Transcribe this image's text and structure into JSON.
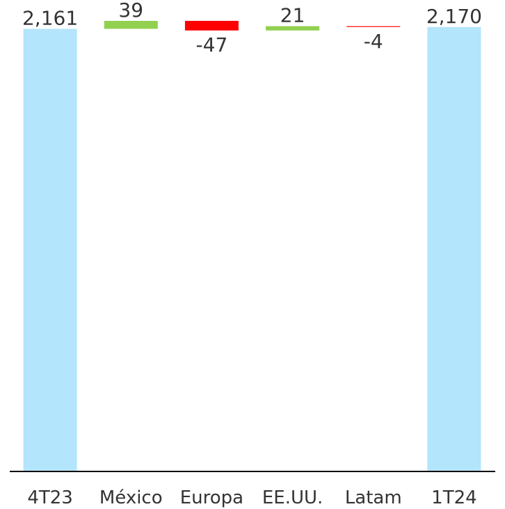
{
  "chart_data": {
    "type": "waterfall",
    "categories": [
      "4T23",
      "México",
      "Europa",
      "EE.UU.",
      "Latam",
      "1T24"
    ],
    "values": [
      2161,
      39,
      -47,
      21,
      -4,
      2170
    ],
    "value_labels": [
      "2,161",
      "39",
      "-47",
      "21",
      "-4",
      "2,170"
    ],
    "totals": [
      true,
      false,
      false,
      false,
      false,
      true
    ],
    "colors": {
      "total": "#b3e5fc",
      "increase": "#92d050",
      "decrease": "#ff0000"
    },
    "ylim": [
      0,
      2200
    ]
  }
}
